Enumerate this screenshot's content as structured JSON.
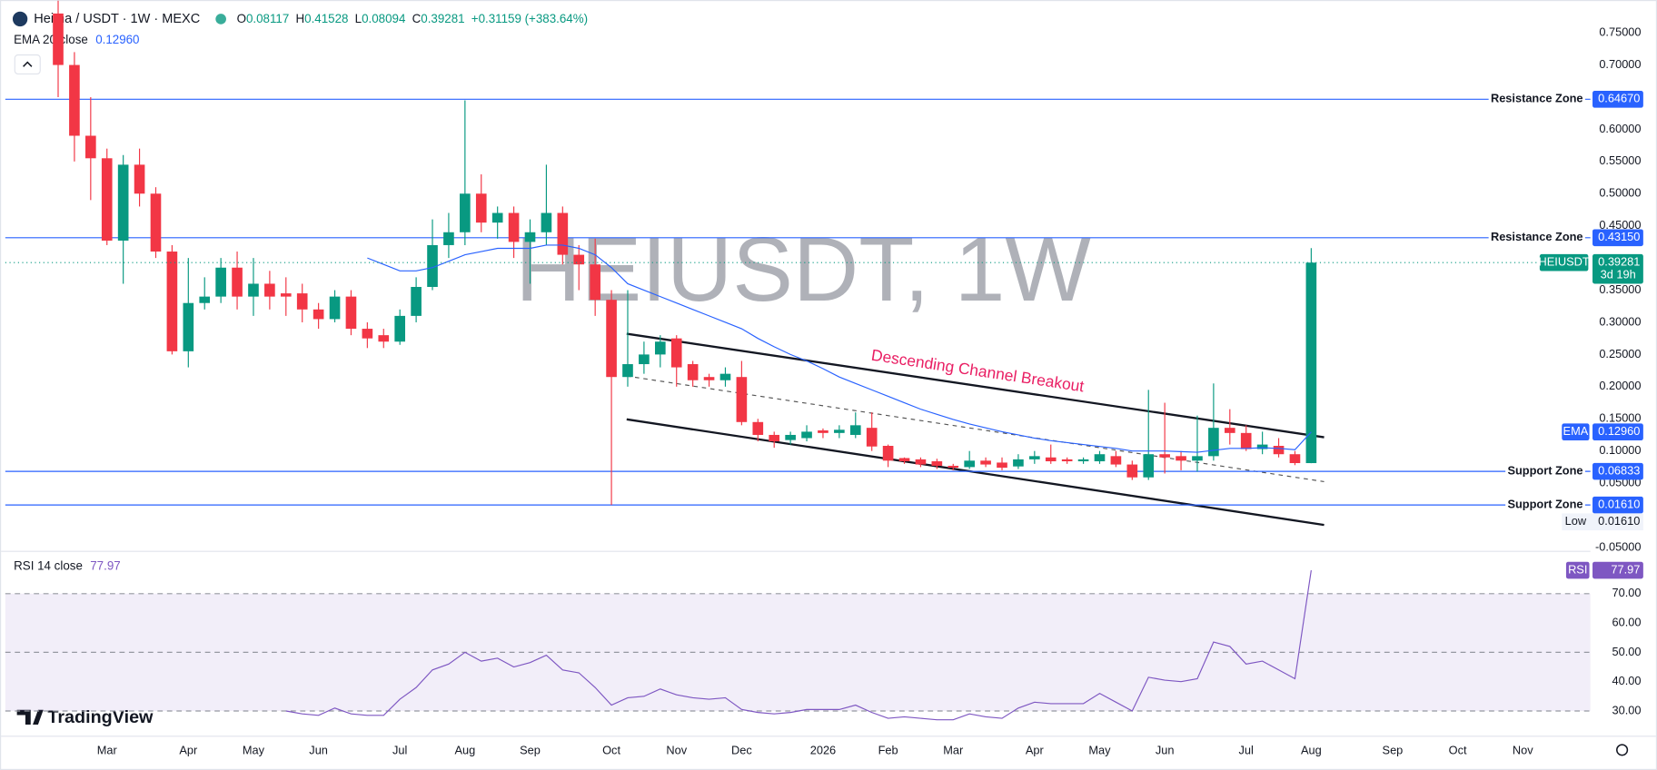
{
  "chart_data": [
    {
      "type": "candlestick",
      "title": "Heima / USDT · 1W · MEXC",
      "ohlc_fields": [
        "O",
        "H",
        "L",
        "C"
      ],
      "change_label": "+0.31159 (+383.64%)",
      "watermark": "HEIUSDT, 1W",
      "annotation": "Descending Channel Breakout",
      "categories": [
        null,
        null,
        null,
        "Mar",
        null,
        null,
        null,
        null,
        "Apr",
        null,
        null,
        null,
        "May",
        null,
        null,
        null,
        "Jun",
        null,
        null,
        null,
        null,
        "Jul",
        null,
        null,
        null,
        "Aug",
        null,
        null,
        null,
        "Sep",
        null,
        null,
        null,
        null,
        "Oct",
        null,
        null,
        null,
        "Nov",
        null,
        null,
        null,
        "Dec",
        null,
        null,
        null,
        null,
        "2026",
        null,
        null,
        null,
        "Feb",
        null,
        null,
        null,
        "Mar",
        null,
        null,
        null,
        null,
        "Apr",
        null,
        null,
        null,
        "May",
        null,
        null,
        null,
        "Jun",
        null,
        null,
        null,
        null,
        "Jul",
        null,
        null,
        null,
        "Aug",
        null,
        null,
        null,
        null,
        "Sep",
        null,
        null,
        null,
        "Oct",
        null,
        null,
        null,
        "Nov"
      ],
      "open": [
        0.78,
        0.7,
        0.59,
        0.555,
        0.427,
        0.545,
        0.5,
        0.41,
        0.255,
        0.33,
        0.34,
        0.385,
        0.34,
        0.36,
        0.345,
        0.345,
        0.32,
        0.305,
        0.34,
        0.29,
        0.28,
        0.27,
        0.31,
        0.355,
        0.42,
        0.44,
        0.5,
        0.455,
        0.47,
        0.425,
        0.44,
        0.47,
        0.405,
        0.39,
        0.335,
        0.215,
        0.235,
        0.25,
        0.275,
        0.235,
        0.215,
        0.21,
        0.215,
        0.145,
        0.125,
        0.117,
        0.12,
        0.132,
        0.128,
        0.125,
        0.136,
        0.108,
        0.089,
        0.087,
        0.084,
        0.077,
        0.075,
        0.085,
        0.082,
        0.076,
        0.087,
        0.09,
        0.087,
        0.084,
        0.084,
        0.092,
        0.079,
        0.059,
        0.095,
        0.092,
        0.085,
        0.092,
        0.136,
        0.128,
        0.103,
        0.108,
        0.095,
        0.08117,
        null,
        null,
        null,
        null,
        null,
        null,
        null,
        null,
        null,
        null,
        null,
        null,
        null
      ],
      "high": [
        0.8,
        0.72,
        0.65,
        0.57,
        0.56,
        0.57,
        0.51,
        0.42,
        0.4,
        0.37,
        0.4,
        0.41,
        0.4,
        0.38,
        0.37,
        0.36,
        0.33,
        0.35,
        0.35,
        0.3,
        0.29,
        0.32,
        0.37,
        0.46,
        0.47,
        0.645,
        0.53,
        0.48,
        0.48,
        0.46,
        0.545,
        0.48,
        0.42,
        0.43,
        0.35,
        0.35,
        0.27,
        0.28,
        0.28,
        0.24,
        0.22,
        0.23,
        0.24,
        0.15,
        0.13,
        0.13,
        0.14,
        0.135,
        0.14,
        0.16,
        0.16,
        0.11,
        0.09,
        0.09,
        0.088,
        0.08,
        0.1,
        0.09,
        0.09,
        0.095,
        0.1,
        0.11,
        0.09,
        0.09,
        0.1,
        0.1,
        0.085,
        0.195,
        0.175,
        0.1,
        0.155,
        0.205,
        0.165,
        0.14,
        0.13,
        0.12,
        0.1,
        0.41528,
        null,
        null,
        null,
        null,
        null,
        null,
        null,
        null,
        null,
        null,
        null,
        null,
        null
      ],
      "low": [
        0.65,
        0.55,
        0.49,
        0.42,
        0.36,
        0.48,
        0.4,
        0.25,
        0.23,
        0.32,
        0.33,
        0.32,
        0.31,
        0.32,
        0.31,
        0.3,
        0.29,
        0.3,
        0.28,
        0.26,
        0.26,
        0.265,
        0.3,
        0.35,
        0.4,
        0.42,
        0.44,
        0.43,
        0.4,
        0.36,
        0.42,
        0.39,
        0.35,
        0.31,
        0.0161,
        0.2,
        0.22,
        0.23,
        0.2,
        0.2,
        0.2,
        0.2,
        0.14,
        0.115,
        0.105,
        0.11,
        0.115,
        0.12,
        0.12,
        0.12,
        0.1,
        0.075,
        0.08,
        0.075,
        0.072,
        0.07,
        0.072,
        0.075,
        0.07,
        0.072,
        0.08,
        0.08,
        0.08,
        0.08,
        0.08,
        0.075,
        0.055,
        0.055,
        0.065,
        0.07,
        0.068,
        0.085,
        0.11,
        0.1,
        0.095,
        0.09,
        0.078,
        0.08094,
        null,
        null,
        null,
        null,
        null,
        null,
        null,
        null,
        null,
        null,
        null,
        null,
        null
      ],
      "close": [
        0.7,
        0.59,
        0.555,
        0.427,
        0.545,
        0.5,
        0.41,
        0.255,
        0.33,
        0.34,
        0.385,
        0.34,
        0.36,
        0.34,
        0.34,
        0.32,
        0.305,
        0.34,
        0.29,
        0.275,
        0.27,
        0.31,
        0.355,
        0.42,
        0.44,
        0.5,
        0.455,
        0.47,
        0.425,
        0.44,
        0.47,
        0.405,
        0.39,
        0.335,
        0.215,
        0.235,
        0.25,
        0.27,
        0.23,
        0.21,
        0.21,
        0.22,
        0.145,
        0.125,
        0.115,
        0.125,
        0.13,
        0.128,
        0.133,
        0.14,
        0.107,
        0.085,
        0.084,
        0.079,
        0.077,
        0.074,
        0.085,
        0.079,
        0.074,
        0.087,
        0.092,
        0.084,
        0.084,
        0.087,
        0.095,
        0.079,
        0.059,
        0.095,
        0.09,
        0.085,
        0.092,
        0.136,
        0.128,
        0.103,
        0.11,
        0.095,
        0.0812,
        0.39281,
        null,
        null,
        null,
        null,
        null,
        null,
        null,
        null,
        null,
        null,
        null,
        null,
        null
      ],
      "up_color": "#089981",
      "down_color": "#f23645",
      "series": [
        {
          "name": "EMA 20 close",
          "short_name": "EMA",
          "color": "#2962ff",
          "value_label": "0.12960",
          "values": [
            null,
            null,
            null,
            null,
            null,
            null,
            null,
            null,
            null,
            null,
            null,
            null,
            null,
            null,
            null,
            null,
            null,
            null,
            null,
            0.4,
            0.39,
            0.38,
            0.38,
            0.385,
            0.395,
            0.405,
            0.41,
            0.415,
            0.415,
            0.415,
            0.42,
            0.42,
            0.415,
            0.405,
            0.385,
            0.36,
            0.35,
            0.34,
            0.33,
            0.32,
            0.31,
            0.3,
            0.29,
            0.275,
            0.262,
            0.25,
            0.24,
            0.228,
            0.215,
            0.205,
            0.195,
            0.185,
            0.175,
            0.165,
            0.157,
            0.149,
            0.142,
            0.136,
            0.13,
            0.125,
            0.12,
            0.116,
            0.113,
            0.11,
            0.107,
            0.104,
            0.1,
            0.1,
            0.1,
            0.099,
            0.098,
            0.101,
            0.104,
            0.104,
            0.105,
            0.104,
            0.102,
            0.1296,
            null,
            null,
            null,
            null,
            null,
            null,
            null,
            null,
            null,
            null,
            null,
            null,
            null
          ]
        }
      ],
      "levels": [
        {
          "name": "Resistance Zone",
          "value": 0.6467,
          "label": "0.64670"
        },
        {
          "name": "Resistance Zone",
          "value": 0.4315,
          "label": "0.43150"
        },
        {
          "name": "Support Zone",
          "value": 0.06833,
          "label": "0.06833"
        },
        {
          "name": "Support Zone",
          "value": 0.0161,
          "label": "0.01610"
        }
      ],
      "level_color": "#2962ff",
      "last_price": {
        "name": "HEIUSDT",
        "value": 0.39281,
        "label": "0.39281",
        "countdown": "3d 19h"
      },
      "low_marker": {
        "name": "Low",
        "value": 0.0161,
        "label": "0.01610"
      },
      "ylim": [
        -0.056,
        0.801
      ],
      "yticks": [
        {
          "value": 0.75,
          "label": "0.75000"
        },
        {
          "value": 0.7,
          "label": "0.70000"
        },
        {
          "value": 0.6,
          "label": "0.60000"
        },
        {
          "value": 0.55,
          "label": "0.55000"
        },
        {
          "value": 0.5,
          "label": "0.50000"
        },
        {
          "value": 0.45,
          "label": "0.45000"
        },
        {
          "value": 0.35,
          "label": "0.35000"
        },
        {
          "value": 0.3,
          "label": "0.30000"
        },
        {
          "value": 0.25,
          "label": "0.25000"
        },
        {
          "value": 0.2,
          "label": "0.20000"
        },
        {
          "value": 0.15,
          "label": "0.15000"
        },
        {
          "value": 0.1,
          "label": "0.10000"
        },
        {
          "value": 0.05,
          "label": "0.05000"
        },
        {
          "value": -0.05,
          "label": "-0.05000"
        }
      ]
    },
    {
      "type": "line",
      "title": "RSI 14 close",
      "series": [
        {
          "name": "RSI",
          "color": "#7e57c2",
          "values": [
            null,
            null,
            null,
            null,
            null,
            null,
            null,
            null,
            null,
            null,
            null,
            null,
            null,
            null,
            30,
            29,
            28.5,
            31,
            29,
            28.5,
            28.5,
            34,
            38,
            44,
            46,
            50,
            47,
            48,
            45,
            46.5,
            49,
            44,
            43,
            38,
            32,
            34.5,
            35,
            37.5,
            35.5,
            34.5,
            34,
            34.5,
            30.5,
            29.5,
            29,
            29.5,
            30.5,
            30.5,
            30.5,
            32,
            29.5,
            27.5,
            28,
            27.5,
            27,
            27,
            29,
            28,
            27.5,
            31,
            33,
            32.5,
            32.5,
            32.5,
            36,
            33,
            30,
            41.5,
            40.5,
            40,
            41,
            53.5,
            52,
            46,
            47,
            44,
            41,
            77.97,
            null,
            null,
            null,
            null,
            null,
            null,
            null,
            null,
            null,
            null,
            null,
            null,
            null
          ]
        }
      ],
      "band": [
        30,
        70
      ],
      "band_color": "#7e57c2",
      "dashed_levels": [
        30,
        50,
        70
      ],
      "ylim": [
        21.4,
        83.7
      ],
      "yticks": [
        {
          "value": 70,
          "label": "70.00"
        },
        {
          "value": 60,
          "label": "60.00"
        },
        {
          "value": 50,
          "label": "50.00"
        },
        {
          "value": 40,
          "label": "40.00"
        },
        {
          "value": 30,
          "label": "30.00"
        }
      ]
    }
  ],
  "brand": "TradingView"
}
